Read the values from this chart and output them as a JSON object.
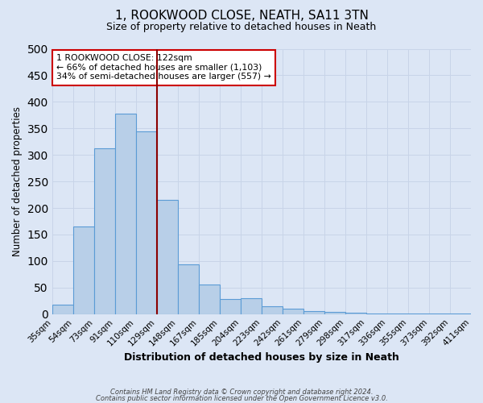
{
  "title": "1, ROOKWOOD CLOSE, NEATH, SA11 3TN",
  "subtitle": "Size of property relative to detached houses in Neath",
  "xlabel": "Distribution of detached houses by size in Neath",
  "ylabel": "Number of detached properties",
  "bin_labels": [
    "35sqm",
    "54sqm",
    "73sqm",
    "91sqm",
    "110sqm",
    "129sqm",
    "148sqm",
    "167sqm",
    "185sqm",
    "204sqm",
    "223sqm",
    "242sqm",
    "261sqm",
    "279sqm",
    "298sqm",
    "317sqm",
    "336sqm",
    "355sqm",
    "373sqm",
    "392sqm",
    "411sqm"
  ],
  "bar_values": [
    18,
    165,
    313,
    378,
    345,
    215,
    93,
    56,
    28,
    30,
    15,
    10,
    6,
    4,
    2,
    1,
    1,
    1,
    1,
    1
  ],
  "bar_color": "#b8cfe8",
  "bar_edge_color": "#5b9bd5",
  "ylim": [
    0,
    500
  ],
  "yticks": [
    0,
    50,
    100,
    150,
    200,
    250,
    300,
    350,
    400,
    450,
    500
  ],
  "vline_color": "#8b0000",
  "annotation_title": "1 ROOKWOOD CLOSE: 122sqm",
  "annotation_line1": "← 66% of detached houses are smaller (1,103)",
  "annotation_line2": "34% of semi-detached houses are larger (557) →",
  "annotation_box_color": "#ffffff",
  "annotation_box_edge": "#cc0000",
  "grid_color": "#c8d4e8",
  "background_color": "#dce6f5",
  "footer_line1": "Contains HM Land Registry data © Crown copyright and database right 2024.",
  "footer_line2": "Contains public sector information licensed under the Open Government Licence v3.0."
}
